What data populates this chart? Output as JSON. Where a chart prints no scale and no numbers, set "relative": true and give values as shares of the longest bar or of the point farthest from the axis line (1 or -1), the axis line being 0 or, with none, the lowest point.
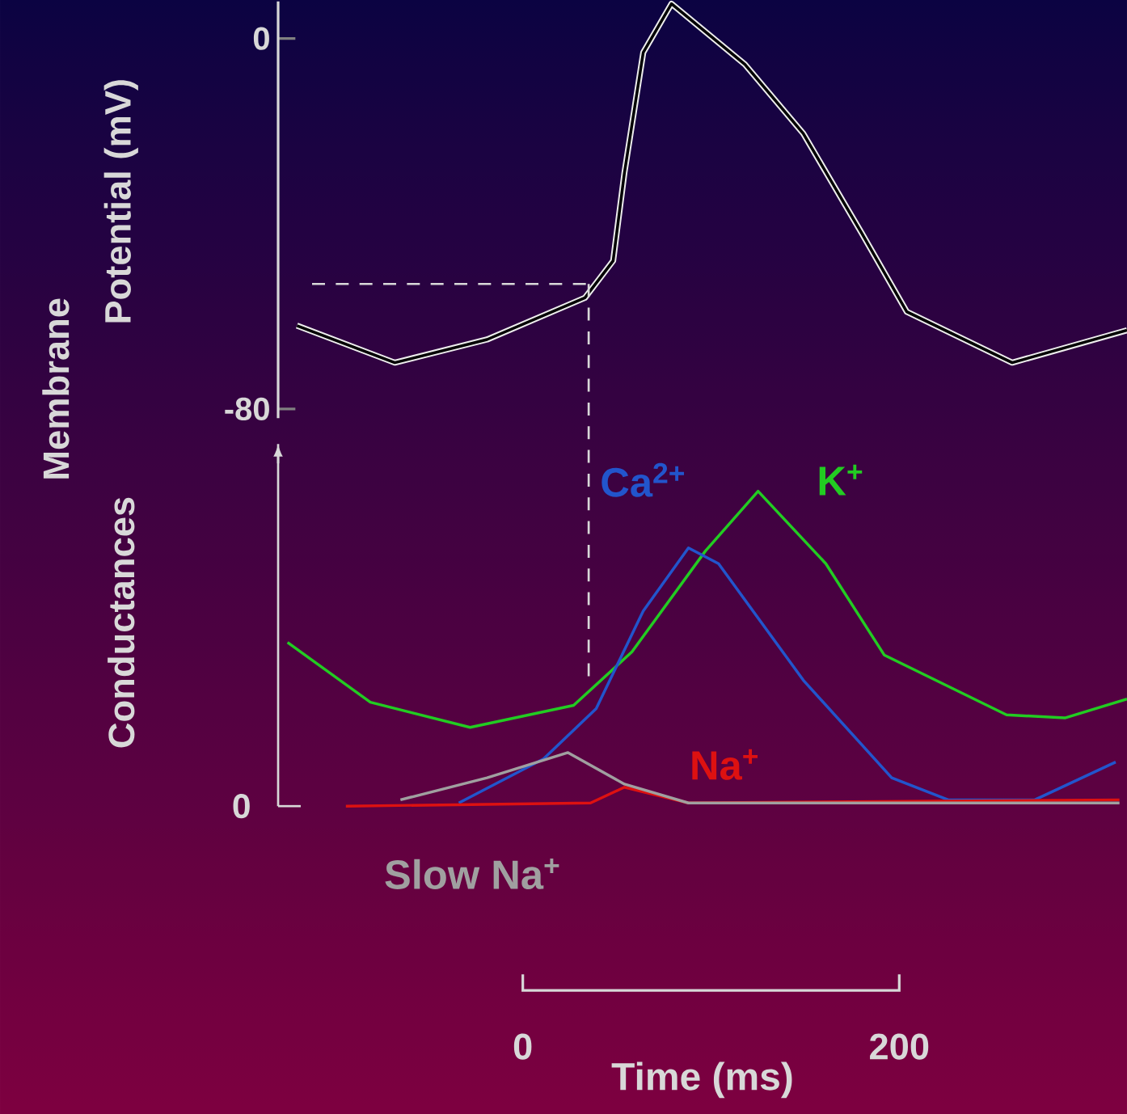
{
  "chart_data": [
    {
      "type": "line",
      "ylabel": "Potential (mV)",
      "annotations": [
        "Membrane"
      ],
      "xlim": [
        -130,
        321
      ],
      "ylim": [
        -82,
        8
      ],
      "yticks": [
        0,
        -80
      ],
      "tick_labels": "y",
      "series": [
        {
          "color": "#000000",
          "x": [
            -120,
            -68,
            -19,
            33,
            48,
            54,
            64,
            79,
            118,
            149,
            180,
            204,
            260,
            321
          ],
          "values": [
            -62,
            -70,
            -65,
            -56,
            -48,
            -29,
            -3,
            7.5,
            -5.6,
            -20.5,
            -42,
            -59,
            -70,
            -63
          ]
        }
      ],
      "ref_lines": [
        {
          "axis": "y",
          "value": -53,
          "color": "#d8d8d8",
          "line_style": "dashed"
        },
        {
          "axis": "x",
          "value": 35,
          "color": "#d8d8d8",
          "line_style": "dashed"
        }
      ]
    },
    {
      "type": "line",
      "relative": true,
      "ylabel": "Conductances",
      "xlabel": "Time (ms)",
      "annotations": [
        "0"
      ],
      "xlim": [
        -130,
        321
      ],
      "xticks": [
        0,
        200
      ],
      "tick_labels": "x",
      "series": [
        {
          "name": "K$^{+}$",
          "color": "#22cc22",
          "x": [
            -125,
            -81,
            -28,
            27,
            58,
            97,
            125,
            161,
            192,
            257,
            288,
            321
          ],
          "values": [
            0.52,
            0.33,
            0.25,
            0.32,
            0.49,
            0.81,
            1.0,
            0.77,
            0.48,
            0.29,
            0.28,
            0.34
          ]
        },
        {
          "name": "Ca$^{2+}$",
          "color": "#2255cc",
          "x": [
            -34,
            11,
            39,
            64,
            88,
            104,
            149,
            196,
            226,
            272,
            315
          ],
          "values": [
            0.01,
            0.15,
            0.31,
            0.62,
            0.82,
            0.77,
            0.4,
            0.09,
            0.02,
            0.02,
            0.14
          ]
        },
        {
          "name": "Na$^{+}$",
          "color": "#dd1111",
          "x": [
            -94,
            36,
            54,
            88,
            317
          ],
          "values": [
            0,
            0.01,
            0.06,
            0.01,
            0.02
          ]
        },
        {
          "name": "Slow Na$^{+}$",
          "color": "#a0a0a0",
          "x": [
            -65,
            -19,
            24,
            54,
            88,
            317
          ],
          "values": [
            0.02,
            0.09,
            0.17,
            0.07,
            0.01,
            0.01
          ]
        }
      ]
    }
  ]
}
